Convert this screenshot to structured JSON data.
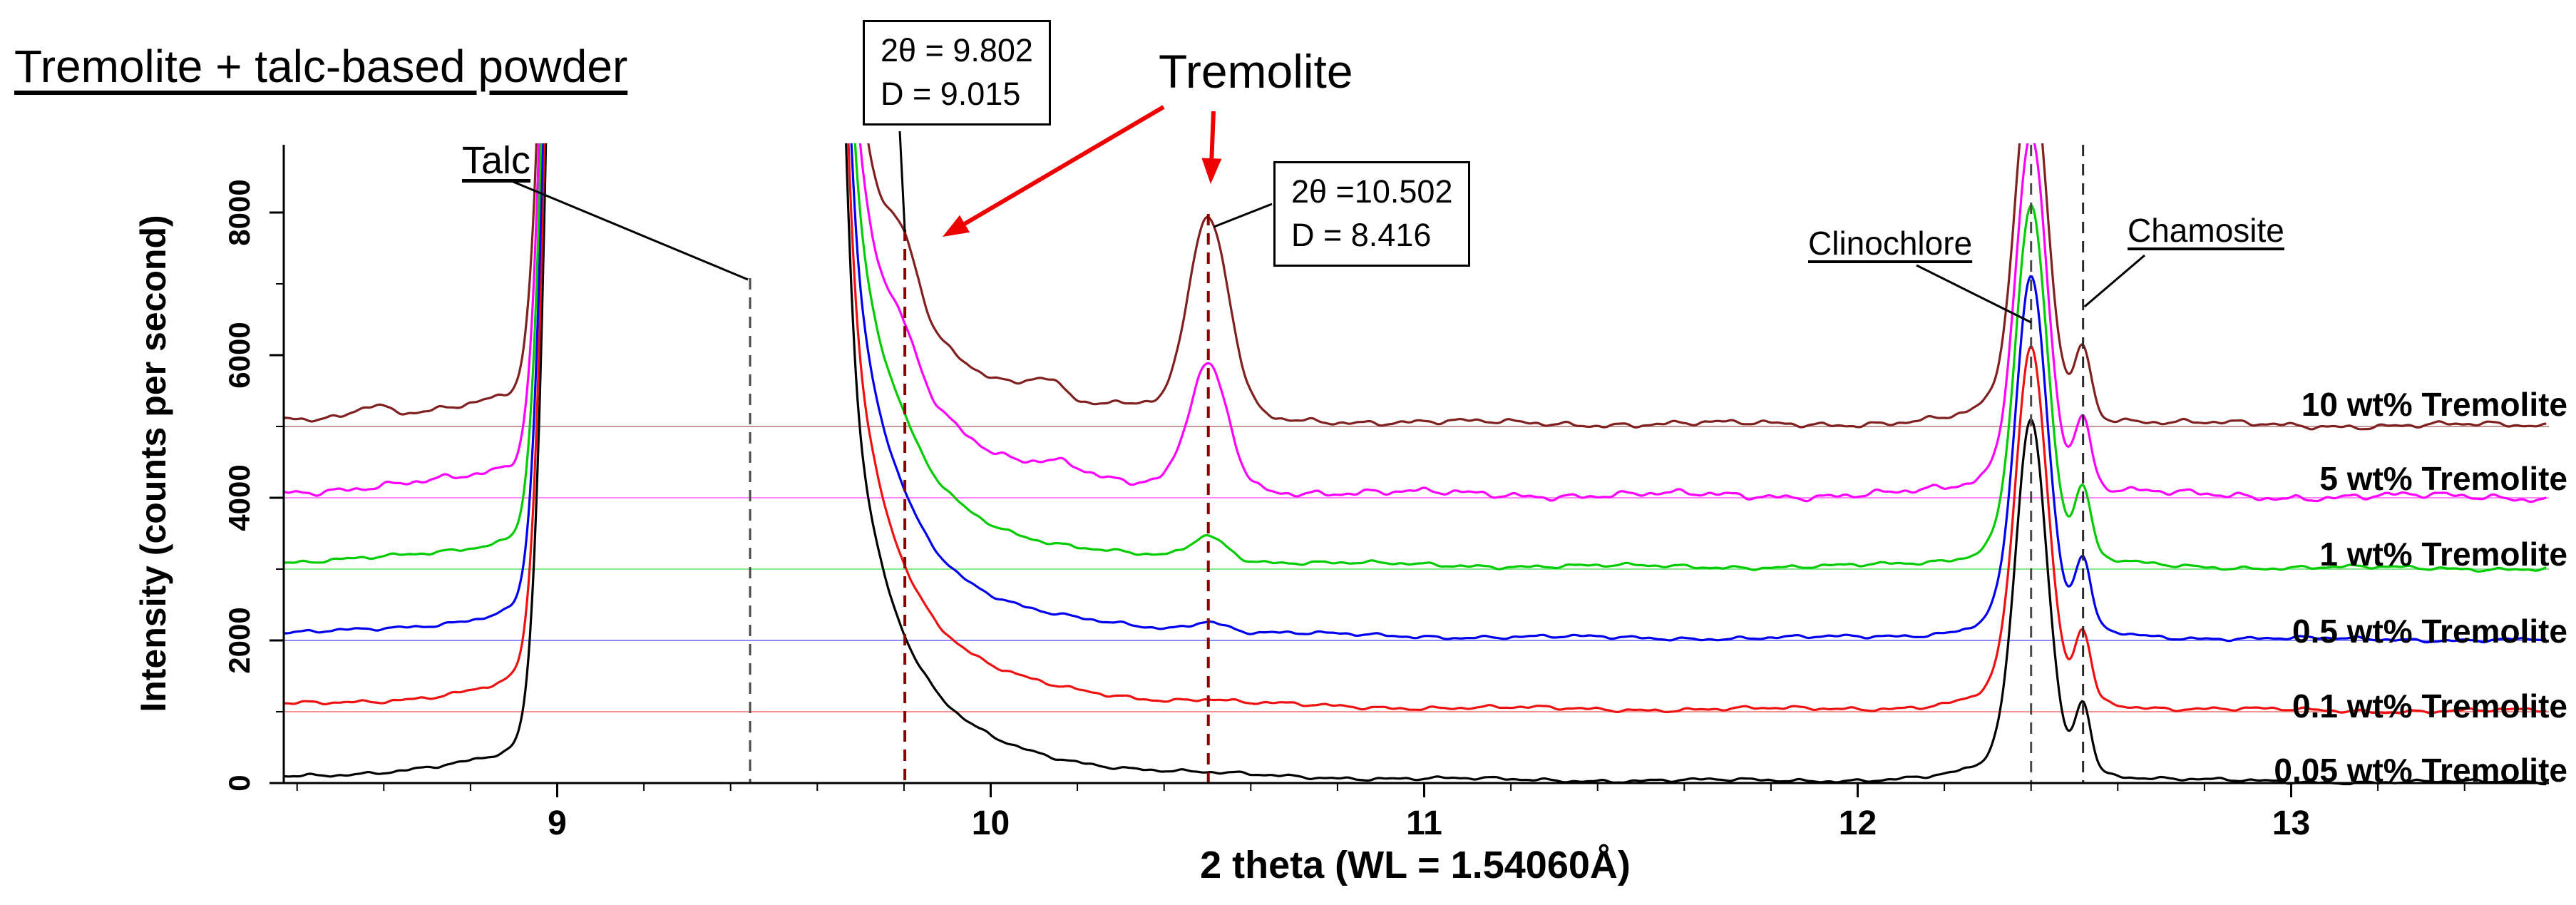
{
  "page": {
    "background": "#ffffff",
    "axis_color": "#000000"
  },
  "title": "Tremolite + talc-based powder",
  "chart_data": {
    "type": "line",
    "title": "Tremolite + talc-based powder",
    "xlabel": "2 theta (WL = 1.54060Å)",
    "ylabel": "Intensity (counts per second)",
    "x_ticks": [
      9,
      10,
      11,
      12,
      13
    ],
    "y_ticks": [
      0,
      2000,
      4000,
      6000,
      8000
    ],
    "x_range": [
      8.37,
      13.59
    ],
    "y_range": [
      0,
      8950
    ],
    "x_minor_step": 0.2,
    "y_minor_step": 1000,
    "grid": false,
    "legend_position": "right-inside",
    "series": [
      {
        "label": "0.05 wt% Tremolite",
        "color": "#000000",
        "offset_counts": 0,
        "noise_amp": 26,
        "seed": 1,
        "tremolite_peaks": []
      },
      {
        "label": "0.1 wt% Tremolite",
        "color": "#ee1111",
        "offset_counts": 1000,
        "noise_amp": 30,
        "seed": 2,
        "tremolite_peaks": [
          {
            "two_theta": 10.502,
            "sigma": 0.04,
            "amplitude": 40
          }
        ]
      },
      {
        "label": "0.5 wt% Tremolite",
        "color": "#0000ee",
        "offset_counts": 2000,
        "noise_amp": 28,
        "seed": 3,
        "tremolite_peaks": [
          {
            "two_theta": 9.802,
            "sigma": 0.03,
            "amplitude": 35
          },
          {
            "two_theta": 10.502,
            "sigma": 0.04,
            "amplitude": 140
          }
        ]
      },
      {
        "label": "1 wt% Tremolite",
        "color": "#00cc00",
        "offset_counts": 3000,
        "noise_amp": 30,
        "seed": 4,
        "tremolite_peaks": [
          {
            "two_theta": 9.802,
            "sigma": 0.03,
            "amplitude": 80
          },
          {
            "two_theta": 10.502,
            "sigma": 0.042,
            "amplitude": 330
          }
        ]
      },
      {
        "label": "5 wt% Tremolite",
        "color": "#ff00ff",
        "offset_counts": 4000,
        "noise_amp": 52,
        "seed": 5,
        "tremolite_peaks": [
          {
            "two_theta": 9.802,
            "sigma": 0.032,
            "amplitude": 340
          },
          {
            "two_theta": 10.502,
            "sigma": 0.045,
            "amplitude": 1700
          },
          {
            "two_theta": 10.16,
            "sigma": 0.06,
            "amplitude": 200
          }
        ]
      },
      {
        "label": "10 wt% Tremolite",
        "color": "#802020",
        "offset_counts": 5000,
        "noise_amp": 42,
        "seed": 6,
        "tremolite_peaks": [
          {
            "two_theta": 9.802,
            "sigma": 0.032,
            "amplitude": 650
          },
          {
            "two_theta": 10.502,
            "sigma": 0.048,
            "amplitude": 2750
          },
          {
            "two_theta": 10.13,
            "sigma": 0.05,
            "amplitude": 280
          },
          {
            "two_theta": 10.32,
            "sigma": 0.05,
            "amplitude": 160
          },
          {
            "two_theta": 8.57,
            "sigma": 0.04,
            "amplitude": 170
          }
        ]
      }
    ],
    "shared_matrix_peaks": [
      {
        "phase": "talc",
        "type": "supergauss",
        "center": 9.31,
        "width": 0.3,
        "power": 6,
        "amplitude": 60000
      },
      {
        "phase": "talc",
        "type": "lorentz",
        "center": 9.62,
        "width": 0.13,
        "amplitude": 6000
      },
      {
        "phase": "talc",
        "type": "lorentz",
        "center": 9.13,
        "width": 0.15,
        "amplitude": 900
      },
      {
        "phase": "clinochlore",
        "type": "gauss",
        "center": 12.4,
        "sigma": 0.035,
        "amplitude": 3900
      },
      {
        "phase": "clinochlore",
        "type": "lorentz",
        "center": 12.4,
        "width": 0.06,
        "amplitude": 1200
      },
      {
        "phase": "chamosite",
        "type": "gauss",
        "center": 12.52,
        "sigma": 0.018,
        "amplitude": 900
      }
    ],
    "reference_lines": [
      {
        "name": "talc",
        "two_theta": 9.445,
        "color": "#4a4a4a",
        "top_y": 390,
        "stroke_width": 3
      },
      {
        "name": "tremolite-peak-1",
        "two_theta": 9.802,
        "d_spacing": 9.015,
        "color": "#8b0000",
        "top_y": 322,
        "stroke_width": 4
      },
      {
        "name": "tremolite-peak-2",
        "two_theta": 10.502,
        "d_spacing": 8.416,
        "color": "#8b0000",
        "top_y": 300,
        "stroke_width": 4
      },
      {
        "name": "clinochlore",
        "two_theta": 12.4,
        "color": "#4a4a4a",
        "top_y": 203,
        "stroke_width": 3
      },
      {
        "name": "chamosite",
        "two_theta": 12.52,
        "color": "#2a2a2a",
        "top_y": 203,
        "stroke_width": 3
      }
    ],
    "annotations": {
      "arrow_color": "#ee0000",
      "talc_label": "Talc",
      "tremolite_label": "Tremolite",
      "clinochlore_label": "Clinochlore",
      "chamosite_label": "Chamosite",
      "peak_box_1": {
        "line1": "2θ = 9.802",
        "line2": "D = 9.015"
      },
      "peak_box_2": {
        "line1": "2θ =10.502",
        "line2": "D = 8.416"
      }
    }
  }
}
